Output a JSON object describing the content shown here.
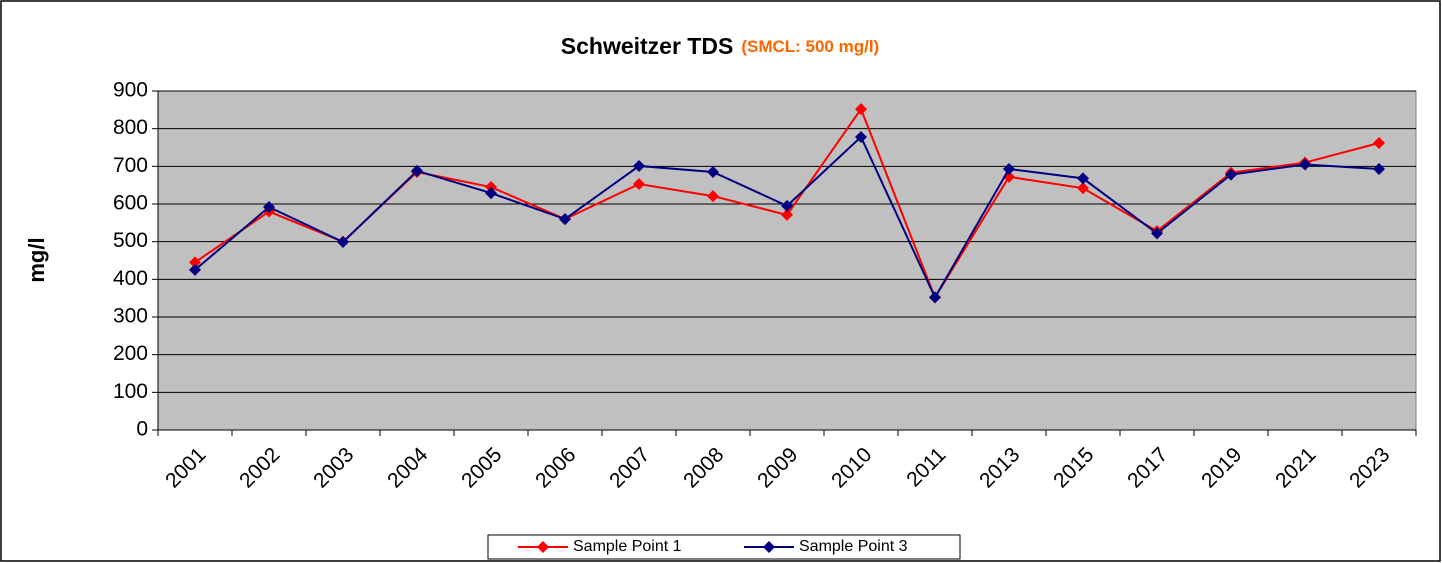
{
  "chart_data": {
    "type": "line",
    "title": "Schweitzer TDS",
    "subtitle": "(SMCL: 500 mg/l)",
    "ylabel": "mg/l",
    "categories": [
      "2001",
      "2002",
      "2003",
      "2004",
      "2005",
      "2006",
      "2007",
      "2008",
      "2009",
      "2010",
      "2011",
      "2013",
      "2015",
      "2017",
      "2019",
      "2021",
      "2023"
    ],
    "series": [
      {
        "name": "Sample Point 1",
        "color": "#ff0000",
        "values": [
          445,
          580,
          500,
          685,
          645,
          560,
          653,
          621,
          571,
          852,
          352,
          672,
          642,
          528,
          683,
          710,
          762
        ]
      },
      {
        "name": "Sample Point 3",
        "color": "#000080",
        "values": [
          425,
          592,
          499,
          688,
          629,
          560,
          701,
          685,
          595,
          778,
          352,
          693,
          668,
          522,
          678,
          705,
          693
        ]
      }
    ],
    "ylim": [
      0,
      900
    ],
    "yticks": [
      0,
      100,
      200,
      300,
      400,
      500,
      600,
      700,
      800,
      900
    ],
    "grid": true,
    "legend": "bottom"
  }
}
